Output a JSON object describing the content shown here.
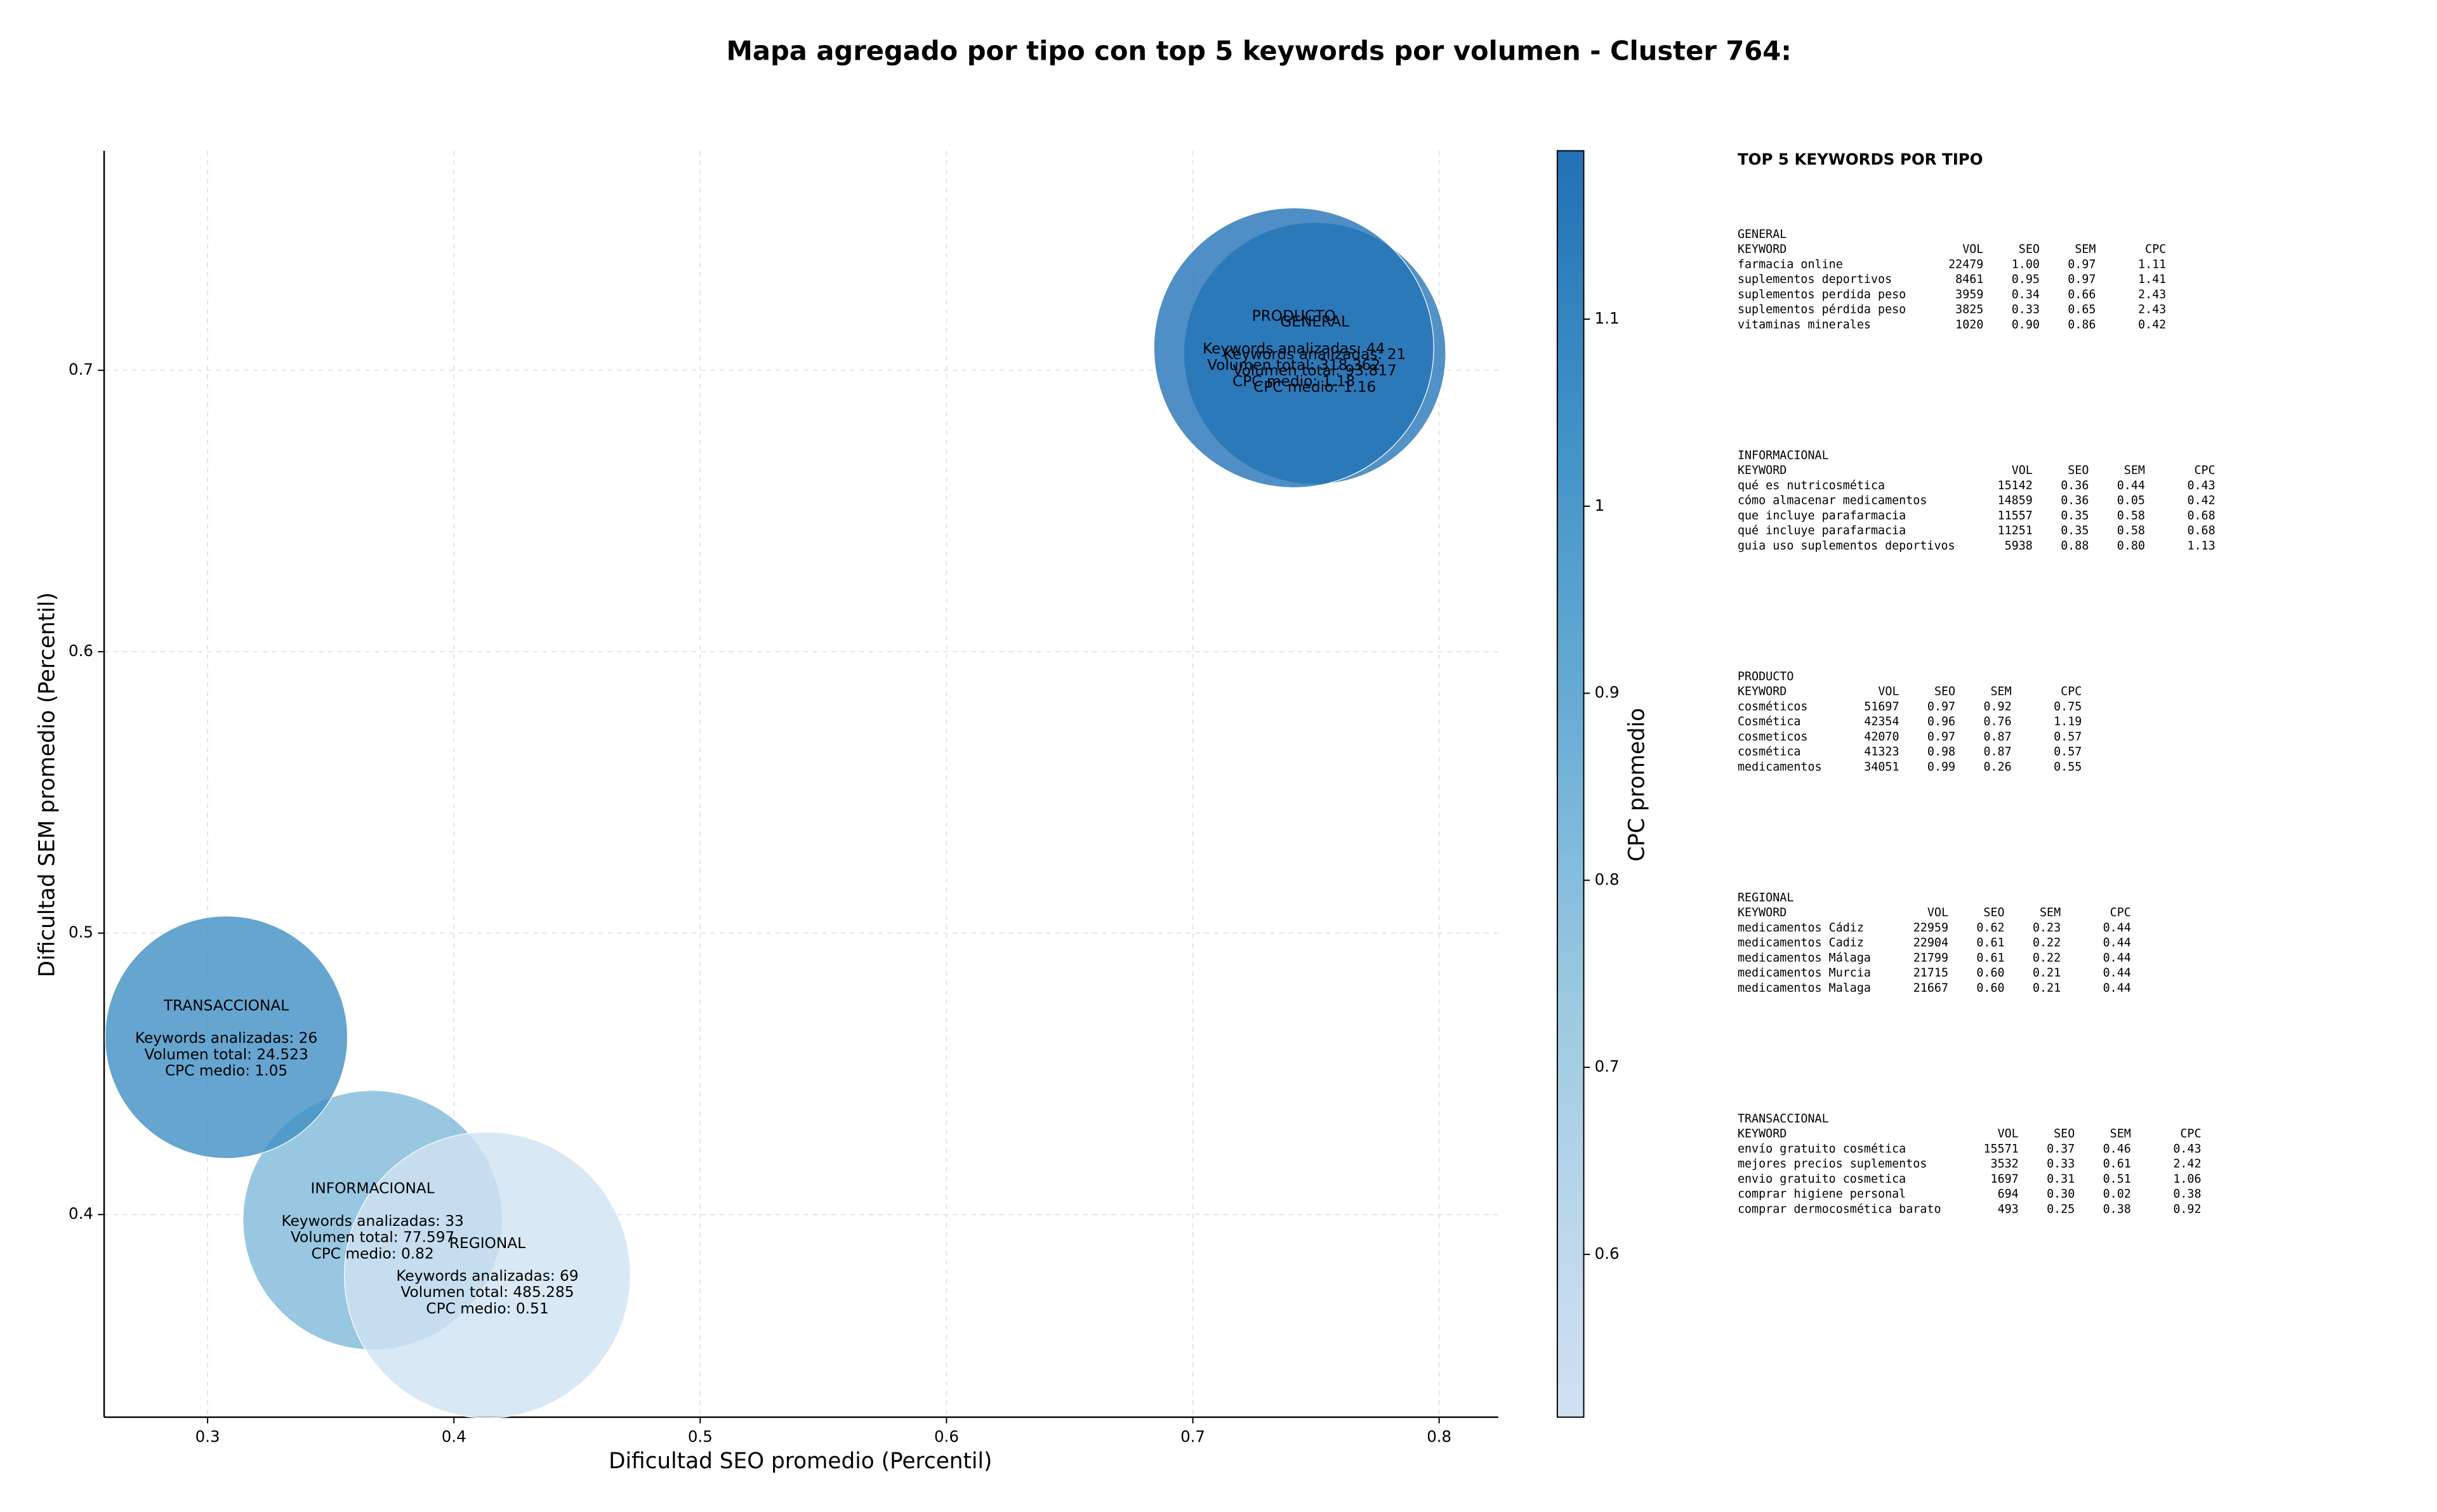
{
  "chart_data": {
    "type": "bubble",
    "title": "Mapa agregado por tipo con top 5 keywords por volumen - Cluster 764:",
    "x_label": "Dificultad SEO promedio (Percentil)",
    "y_label": "Dificultad SEM promedio (Percentil)",
    "xlim": [
      0.258,
      0.824
    ],
    "ylim": [
      0.328,
      0.778
    ],
    "xticks": [
      0.3,
      0.4,
      0.5,
      0.6,
      0.7,
      0.8
    ],
    "yticks": [
      0.4,
      0.5,
      0.6,
      0.7
    ],
    "grid": true,
    "colormap": "Blues",
    "colorbar_label": "CPC promedio",
    "clim": [
      0.513,
      1.19
    ],
    "cticks": [
      0.6,
      0.7,
      0.8,
      0.9,
      1.0,
      1.1
    ],
    "points": [
      {
        "name": "GENERAL",
        "x": 0.7495,
        "y": 0.706,
        "volume": 93817,
        "cpc": 1.16,
        "annotation": [
          "Keywords analizadas: 21",
          "Volumen total: 93.817",
          "CPC medio: 1.16"
        ]
      },
      {
        "name": "INFORMACIONAL",
        "x": 0.367,
        "y": 0.398,
        "volume": 77597,
        "cpc": 0.82,
        "annotation": [
          "Keywords analizadas: 33",
          "Volumen total: 77.597",
          "CPC medio: 0.82"
        ]
      },
      {
        "name": "PRODUCTO",
        "x": 0.741,
        "y": 0.708,
        "volume": 318362,
        "cpc": 1.18,
        "annotation": [
          "Keywords analizadas: 44",
          "Volumen total: 318.362",
          "CPC medio: 1.18"
        ]
      },
      {
        "name": "REGIONAL",
        "x": 0.4136,
        "y": 0.3785,
        "volume": 485285,
        "cpc": 0.51,
        "annotation": [
          "Keywords analizadas: 69",
          "Volumen total: 485.285",
          "CPC medio: 0.51"
        ]
      },
      {
        "name": "TRANSACCIONAL",
        "x": 0.3076,
        "y": 0.463,
        "volume": 24523,
        "cpc": 1.05,
        "annotation": [
          "Keywords analizadas: 26",
          "Volumen total: 24.523",
          "CPC medio: 1.05"
        ]
      }
    ]
  },
  "panel": {
    "title": "TOP 5 KEYWORDS POR TIPO",
    "header": [
      "KEYWORD",
      "VOL",
      "SEO",
      "SEM",
      "CPC"
    ],
    "tables": [
      {
        "name": "GENERAL",
        "rows": [
          [
            "farmacia online",
            "22479",
            "1.00",
            "0.97",
            "1.11"
          ],
          [
            "suplementos deportivos",
            "8461",
            "0.95",
            "0.97",
            "1.41"
          ],
          [
            "suplementos perdida peso",
            "3959",
            "0.34",
            "0.66",
            "2.43"
          ],
          [
            "suplementos pérdida peso",
            "3825",
            "0.33",
            "0.65",
            "2.43"
          ],
          [
            "vitaminas minerales",
            "1020",
            "0.90",
            "0.86",
            "0.42"
          ]
        ]
      },
      {
        "name": "INFORMACIONAL",
        "rows": [
          [
            "qué es nutricosmética",
            "15142",
            "0.36",
            "0.44",
            "0.43"
          ],
          [
            "cómo almacenar medicamentos",
            "14859",
            "0.36",
            "0.05",
            "0.42"
          ],
          [
            "que incluye parafarmacia",
            "11557",
            "0.35",
            "0.58",
            "0.68"
          ],
          [
            "qué incluye parafarmacia",
            "11251",
            "0.35",
            "0.58",
            "0.68"
          ],
          [
            "guia uso suplementos deportivos",
            "5938",
            "0.88",
            "0.80",
            "1.13"
          ]
        ]
      },
      {
        "name": "PRODUCTO",
        "rows": [
          [
            "cosméticos",
            "51697",
            "0.97",
            "0.92",
            "0.75"
          ],
          [
            "Cosmética",
            "42354",
            "0.96",
            "0.76",
            "1.19"
          ],
          [
            "cosmeticos",
            "42070",
            "0.97",
            "0.87",
            "0.57"
          ],
          [
            "cosmética",
            "41323",
            "0.98",
            "0.87",
            "0.57"
          ],
          [
            "medicamentos",
            "34051",
            "0.99",
            "0.26",
            "0.55"
          ]
        ]
      },
      {
        "name": "REGIONAL",
        "rows": [
          [
            "medicamentos Cádiz",
            "22959",
            "0.62",
            "0.23",
            "0.44"
          ],
          [
            "medicamentos Cadiz",
            "22904",
            "0.61",
            "0.22",
            "0.44"
          ],
          [
            "medicamentos Málaga",
            "21799",
            "0.61",
            "0.22",
            "0.44"
          ],
          [
            "medicamentos Murcia",
            "21715",
            "0.60",
            "0.21",
            "0.44"
          ],
          [
            "medicamentos Malaga",
            "21667",
            "0.60",
            "0.21",
            "0.44"
          ]
        ]
      },
      {
        "name": "TRANSACCIONAL",
        "rows": [
          [
            "envío gratuito cosmética",
            "15571",
            "0.37",
            "0.46",
            "0.43"
          ],
          [
            "mejores precios suplementos",
            "3532",
            "0.33",
            "0.61",
            "2.42"
          ],
          [
            "envio gratuito cosmetica",
            "1697",
            "0.31",
            "0.51",
            "1.06"
          ],
          [
            "comprar higiene personal",
            "694",
            "0.30",
            "0.02",
            "0.38"
          ],
          [
            "comprar dermocosmética barato",
            "493",
            "0.25",
            "0.38",
            "0.92"
          ]
        ]
      }
    ]
  }
}
